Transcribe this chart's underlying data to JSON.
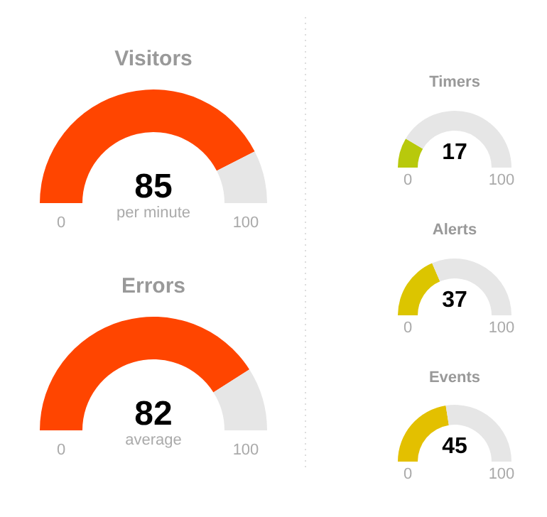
{
  "chart_data": [
    {
      "type": "donut",
      "title": "Visitors",
      "categories": [
        null,
        null
      ],
      "values": [
        85,
        15
      ],
      "colors": [
        "#ff4500",
        "#e6e6e6"
      ],
      "annotations": [
        "85",
        "per minute",
        "0",
        "100"
      ]
    },
    {
      "type": "donut",
      "title": "Errors",
      "categories": [
        null,
        null
      ],
      "values": [
        82,
        18
      ],
      "colors": [
        "#ff4500",
        "#e6e6e6"
      ],
      "annotations": [
        "82",
        "average",
        "0",
        "100"
      ]
    },
    {
      "type": "donut",
      "title": "Timers",
      "categories": [
        null,
        null
      ],
      "values": [
        17,
        83
      ],
      "colors": [
        "#b8c90c",
        "#e6e6e6"
      ],
      "annotations": [
        "17",
        "0",
        "100"
      ]
    },
    {
      "type": "donut",
      "title": "Alerts",
      "categories": [
        null,
        null
      ],
      "values": [
        37,
        63
      ],
      "colors": [
        "#dcc500",
        "#e6e6e6"
      ],
      "annotations": [
        "37",
        "0",
        "100"
      ]
    },
    {
      "type": "donut",
      "title": "Events",
      "categories": [
        null,
        null
      ],
      "values": [
        45,
        55
      ],
      "colors": [
        "#e3c000",
        "#e6e6e6"
      ],
      "annotations": [
        "45",
        "0",
        "100"
      ]
    }
  ]
}
